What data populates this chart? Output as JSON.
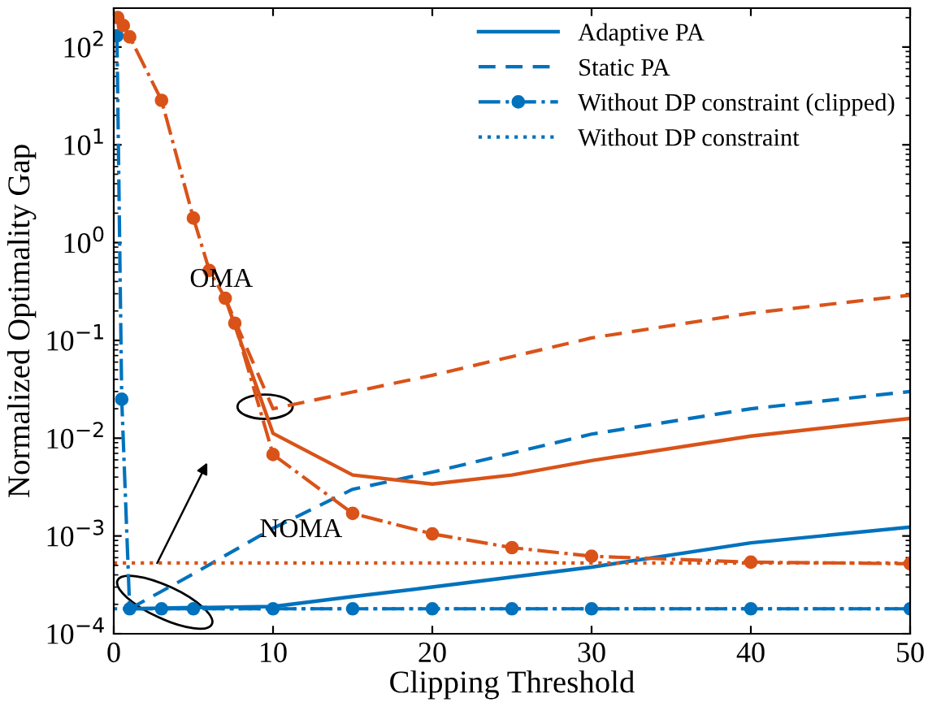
{
  "chart_data": {
    "type": "line",
    "xlabel": "Clipping Threshold",
    "ylabel": "Normalized Optimality Gap",
    "log": "y",
    "grid": false,
    "legend": "top right",
    "xlim": [
      0,
      50
    ],
    "xticks": [
      0,
      10,
      20,
      30,
      40,
      50
    ],
    "ylim": [
      0.0001,
      250
    ],
    "yticks": [
      {
        "value": 0.0001,
        "label": "10$^{−4}$"
      },
      {
        "value": 0.001,
        "label": "10$^{−3}$"
      },
      {
        "value": 0.01,
        "label": "10$^{−2}$"
      },
      {
        "value": 0.1,
        "label": "10$^{−1}$"
      },
      {
        "value": 1,
        "label": "10$^{0}$"
      },
      {
        "value": 10,
        "label": "10$^{1}$"
      },
      {
        "value": 100,
        "label": "10$^{2}$"
      }
    ],
    "series": [
      {
        "name": "Adaptive PA",
        "color": "#0072bd",
        "line_style": "solid",
        "marker": "none",
        "x": [
          1,
          5,
          10,
          15,
          20,
          30,
          40,
          50
        ],
        "values": [
          0.00018,
          0.000185,
          0.00019,
          0.00024,
          0.0003,
          0.00048,
          0.00085,
          0.00123
        ]
      },
      {
        "name": "Static PA",
        "color": "#0072bd",
        "line_style": "dashed",
        "marker": "none",
        "x": [
          1,
          5,
          10,
          15,
          20,
          30,
          40,
          50
        ],
        "values": [
          0.00018,
          0.00041,
          0.0012,
          0.003,
          0.0045,
          0.011,
          0.02,
          0.03
        ]
      },
      {
        "name": "Without DP constraint (clipped)",
        "color": "#0072bd",
        "line_style": "dashdot",
        "marker": "circle",
        "x": [
          0.2,
          0.5,
          1,
          3,
          5,
          10,
          15,
          20,
          25,
          30,
          40,
          50
        ],
        "values": [
          130,
          0.025,
          0.00018,
          0.00018,
          0.00018,
          0.00018,
          0.00018,
          0.00018,
          0.00018,
          0.00018,
          0.00018,
          0.00018
        ]
      },
      {
        "name": "Without DP constraint",
        "color": "#0072bd",
        "line_style": "dotted",
        "marker": "none",
        "x": [
          0,
          50
        ],
        "values": [
          0.00018,
          0.00018
        ]
      },
      {
        "color": "#d95319",
        "line_style": "solid",
        "marker": "none",
        "x": [
          7,
          10,
          15,
          20,
          25,
          30,
          40,
          50
        ],
        "values": [
          0.27,
          0.0112,
          0.0042,
          0.0034,
          0.0042,
          0.0059,
          0.0105,
          0.0159
        ]
      },
      {
        "color": "#d95319",
        "line_style": "dashed",
        "marker": "none",
        "x": [
          7,
          10,
          20,
          30,
          40,
          50
        ],
        "values": [
          0.27,
          0.02,
          0.044,
          0.106,
          0.19,
          0.29
        ]
      },
      {
        "color": "#d95319",
        "line_style": "dashdot",
        "marker": "circle",
        "x": [
          0.25,
          0.6,
          1,
          3,
          5,
          6,
          7,
          7.6,
          10,
          15,
          20,
          25,
          30,
          40,
          50
        ],
        "values": [
          200,
          166,
          127,
          28.5,
          1.78,
          0.52,
          0.27,
          0.15,
          0.0068,
          0.0017,
          0.00105,
          0.00076,
          0.00062,
          0.00054,
          0.00052
        ]
      },
      {
        "color": "#d95319",
        "line_style": "dotted",
        "marker": "none",
        "x": [
          0,
          50
        ],
        "values": [
          0.00053,
          0.00053
        ]
      }
    ],
    "annotations": [
      "OMA",
      "NOMA"
    ]
  }
}
